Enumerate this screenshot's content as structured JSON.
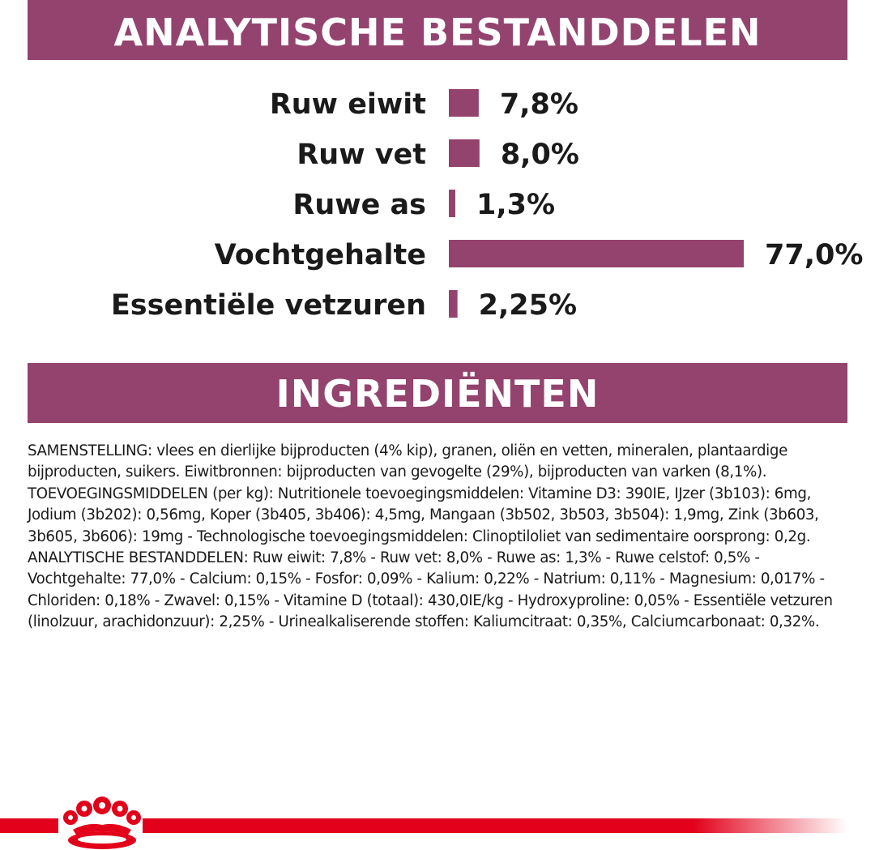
{
  "sections": {
    "analytic_title": "ANALYTISCHE BESTANDDELEN",
    "ingredients_title": "INGREDIËNTEN"
  },
  "chart_data": {
    "type": "bar",
    "orientation": "horizontal",
    "categories": [
      "Ruw eiwit",
      "Ruw vet",
      "Ruwe as",
      "Vochtgehalte",
      "Essentiële vetzuren"
    ],
    "values": [
      7.8,
      8.0,
      1.3,
      77.0,
      2.25
    ],
    "value_labels": [
      "7,8%",
      "8,0%",
      "1,3%",
      "77,0%",
      "2,25%"
    ],
    "unit": "%",
    "xlim": [
      0,
      77
    ],
    "grid": false,
    "legend": "none",
    "bar_color": "#94436e"
  },
  "ingredients": {
    "paragraphs": [
      "SAMENSTELLING: vlees en dierlijke bijproducten (4% kip), granen, oliën en vetten, mineralen, plantaardige bijproducten, suikers. Eiwitbronnen: bijproducten van gevogelte (29%), bijproducten van varken (8,1%).",
      "TOEVOEGINGSMIDDELEN (per kg): Nutritionele toevoegingsmiddelen: Vitamine D3: 390IE, IJzer (3b103): 6mg, Jodium (3b202): 0,56mg, Koper (3b405, 3b406): 4,5mg, Mangaan (3b502, 3b503, 3b504): 1,9mg, Zink (3b603, 3b605, 3b606): 19mg - Technologische toevoegingsmiddelen: Clinoptiloliet van sedimentaire oorsprong: 0,2g.",
      "ANALYTISCHE BESTANDDELEN: Ruw eiwit: 7,8% - Ruw vet: 8,0% - Ruwe as: 1,3% - Ruwe celstof: 0,5% - Vochtgehalte: 77,0% - Calcium: 0,15% - Fosfor: 0,09% - Kalium: 0,22% - Natrium: 0,11% - Magnesium: 0,017% - Chloriden: 0,18% - Zwavel: 0,15% - Vitamine D (totaal): 430,0IE/kg - Hydroxyproline: 0,05% - Essentiële vetzuren (linolzuur, arachidonzuur): 2,25% - Urinealkaliserende stoffen: Kaliumcitraat: 0,35%, Calciumcarbonaat: 0,32%."
    ]
  },
  "footer": {
    "logo_icon": "crown-icon",
    "accent_color": "#e2001a"
  }
}
